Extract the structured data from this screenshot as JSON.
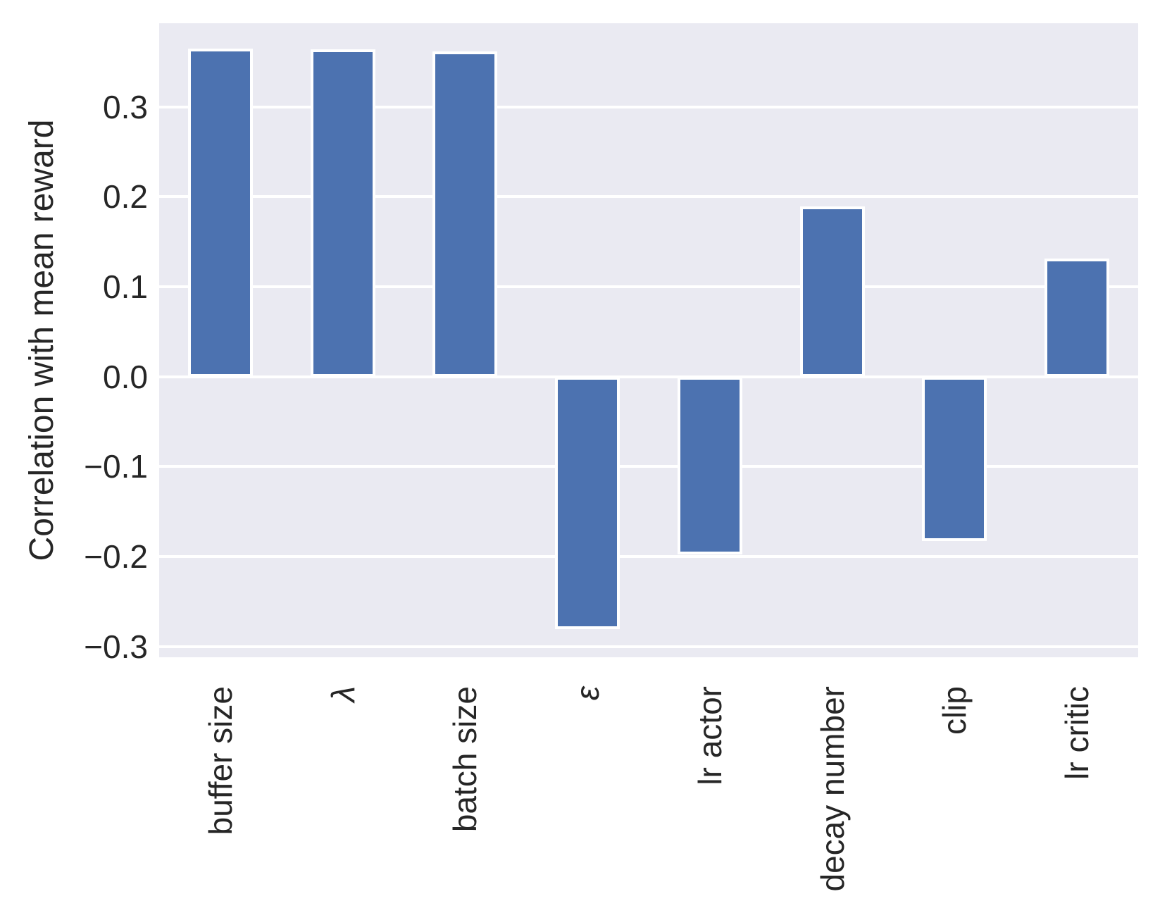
{
  "chart_data": {
    "type": "bar",
    "title": "",
    "xlabel": "",
    "ylabel": "Correlation with mean reward",
    "categories": [
      "buffer size",
      "λ",
      "batch size",
      "ε",
      "lr actor",
      "decay number",
      "clip",
      "lr critic"
    ],
    "italic_categories": [
      "λ",
      "ε"
    ],
    "values": [
      0.365,
      0.364,
      0.362,
      -0.281,
      -0.198,
      0.189,
      -0.183,
      0.131
    ],
    "yticks": [
      -0.3,
      -0.2,
      -0.1,
      0.0,
      0.1,
      0.2,
      0.3
    ],
    "ytick_labels": [
      "−0.3",
      "−0.2",
      "−0.1",
      "0.0",
      "0.1",
      "0.2",
      "0.3"
    ],
    "ylim": [
      -0.312,
      0.393
    ],
    "grid": true,
    "legend_position": "none",
    "bar_color": "#4C72B0",
    "plot_background": "#EAEAF2",
    "grid_color": "#FFFFFF",
    "text_color": "#262626"
  }
}
